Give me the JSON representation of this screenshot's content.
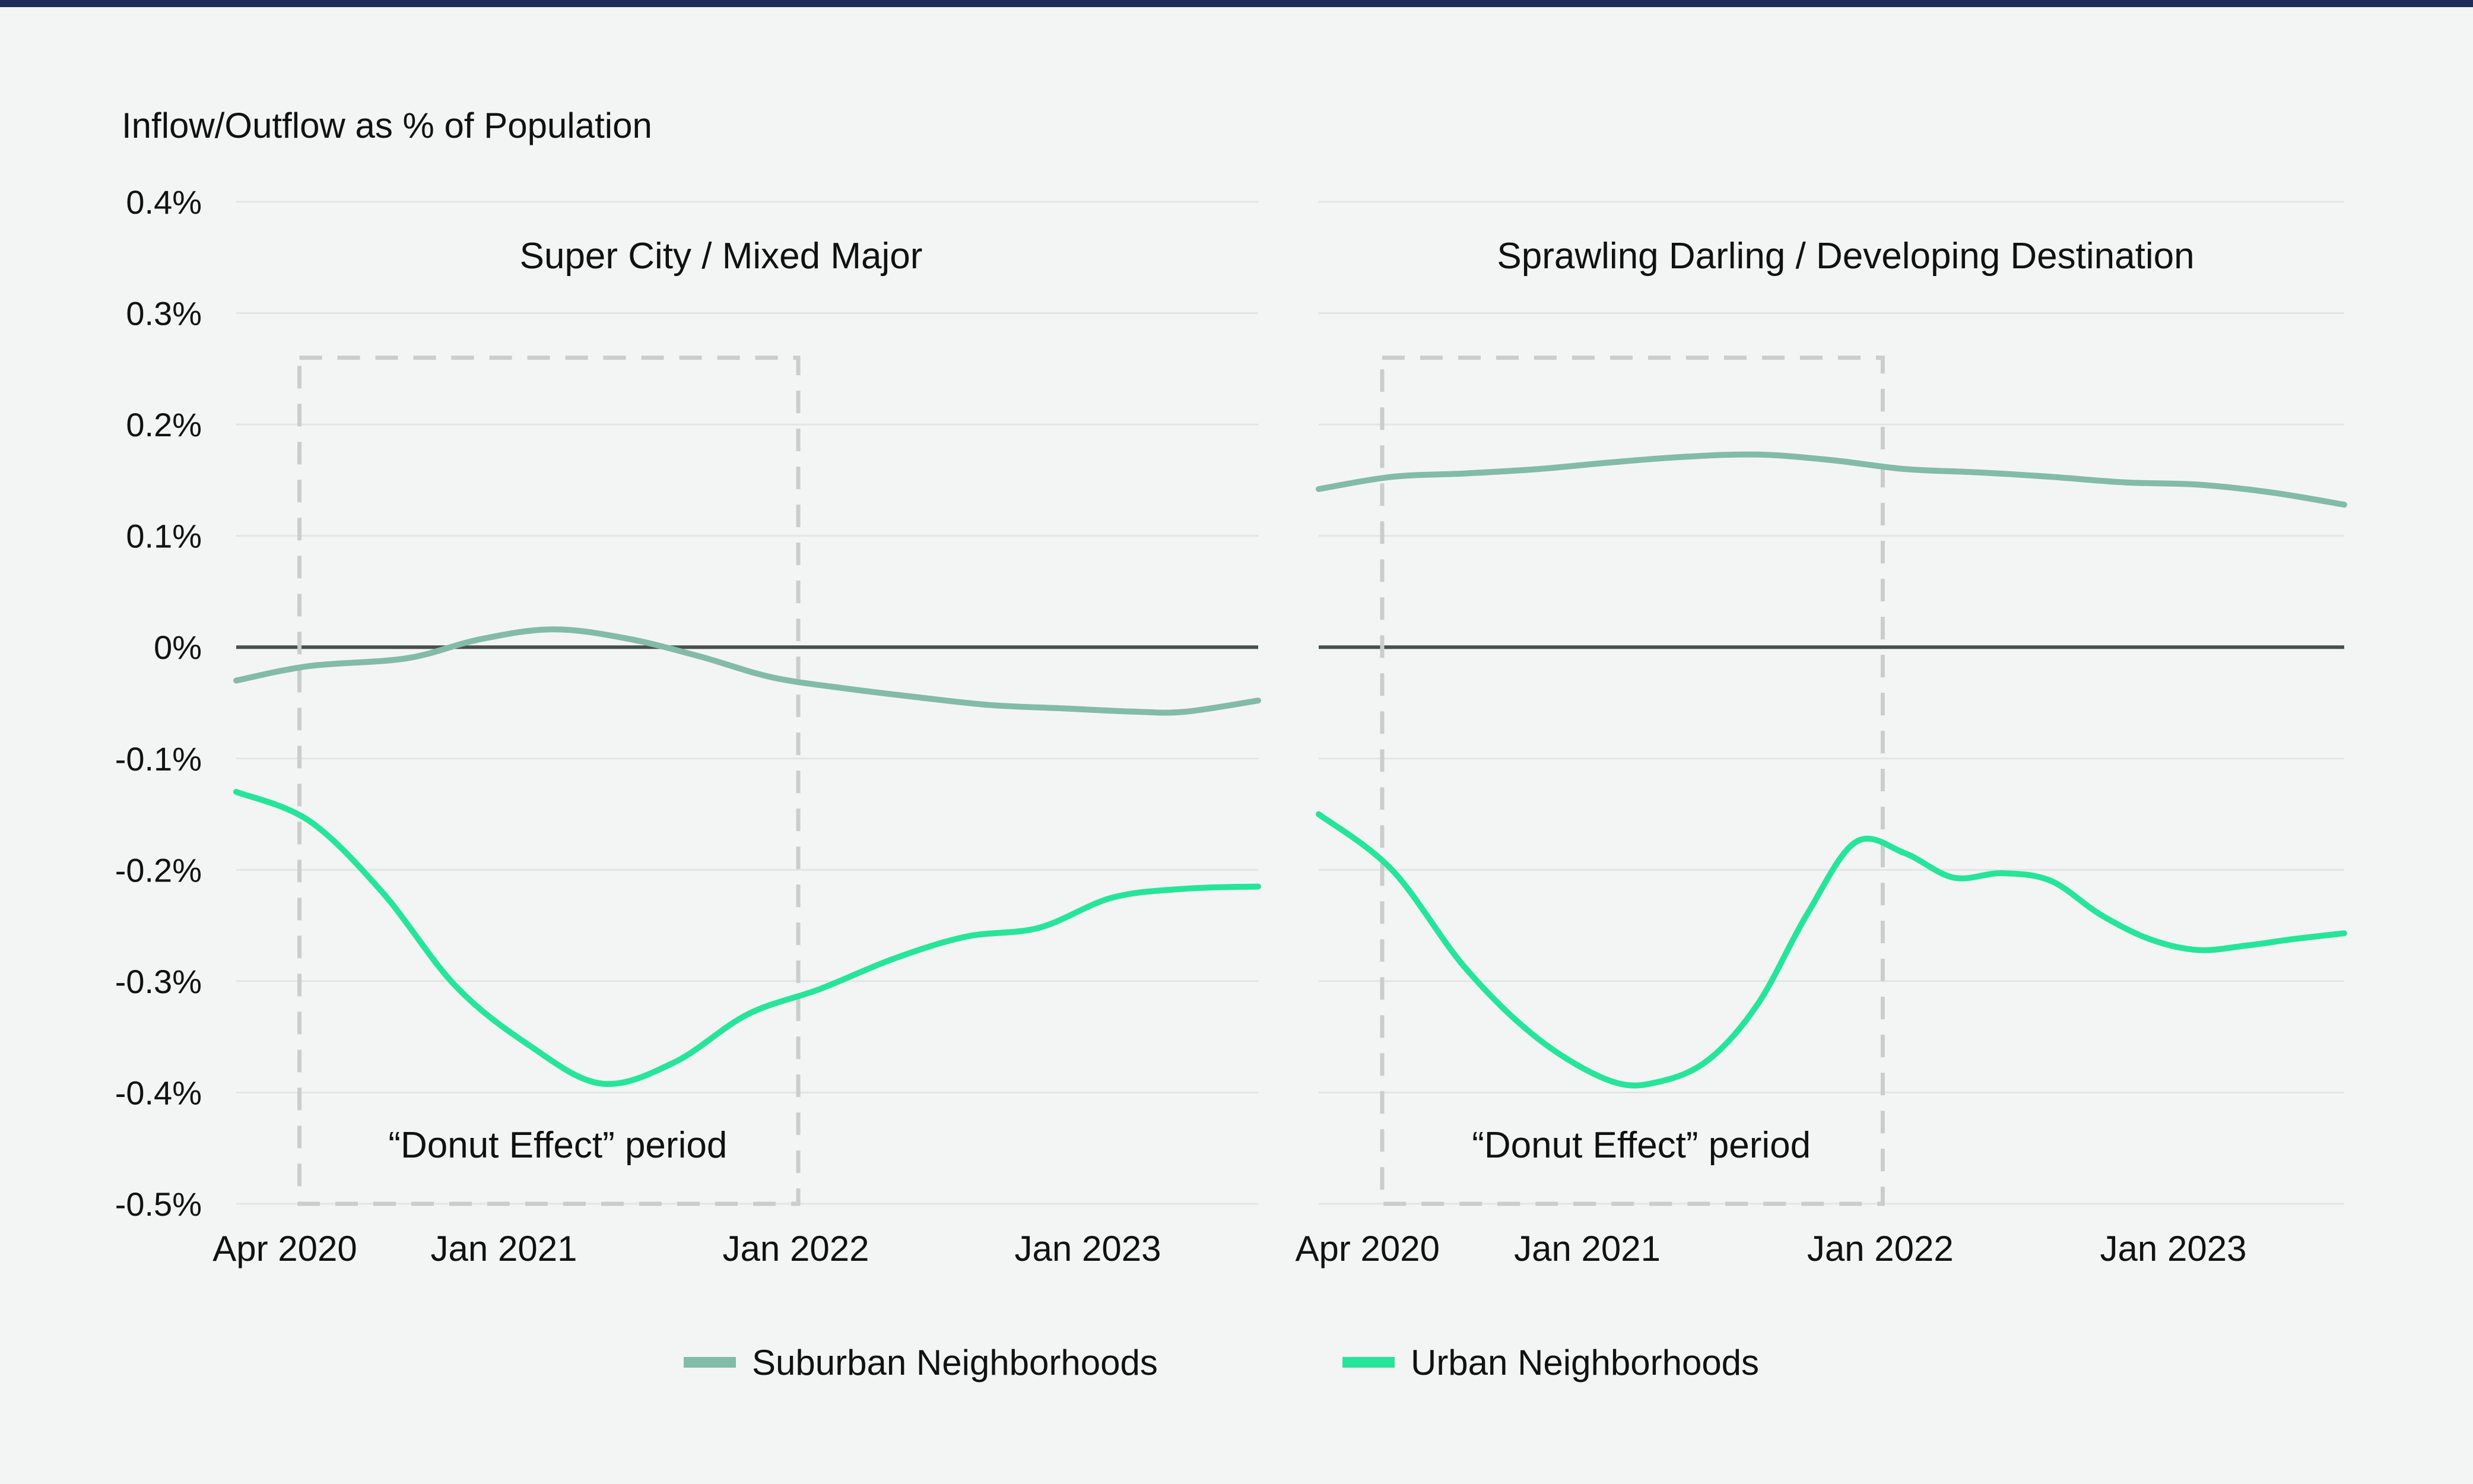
{
  "colors": {
    "background": "#f3f5f4",
    "top_bar": "#1c2d5a",
    "suburban": "#83bba9",
    "urban": "#26e59a",
    "zero_line": "#46504f",
    "grid": "#e1e5e3",
    "box": "#c9cdcb"
  },
  "chart_data": [
    {
      "type": "line",
      "title": "Super City / Mixed Major",
      "ylabel": "Inflow/Outflow as % of Population",
      "ylim": [
        -0.5,
        0.4
      ],
      "y_ticks": [
        0.4,
        0.3,
        0.2,
        0.1,
        0,
        -0.1,
        -0.2,
        -0.3,
        -0.4,
        -0.5
      ],
      "y_tick_labels": [
        "0.4%",
        "0.3%",
        "0.2%",
        "0.1%",
        "0%",
        "-0.1%",
        "-0.2%",
        "-0.3%",
        "-0.4%",
        "-0.5%"
      ],
      "x_unit": "months since Jan 2020",
      "xlim": [
        1,
        43
      ],
      "x_ticks": [
        3,
        12,
        24,
        36
      ],
      "x_tick_labels": [
        "Apr 2020",
        "Jan 2021",
        "Jan 2022",
        "Jan 2023"
      ],
      "annotation": {
        "text": "“Donut Effect” period",
        "x_range": [
          3.6,
          24.1
        ],
        "y_range": [
          -0.5,
          0.26
        ]
      },
      "series": [
        {
          "name": "Suburban Neighborhoods",
          "x": [
            1,
            4,
            8,
            11,
            14,
            17,
            20,
            23,
            26,
            29,
            32,
            35,
            38,
            40,
            43
          ],
          "y": [
            -0.03,
            -0.017,
            -0.01,
            0.007,
            0.016,
            0.008,
            -0.008,
            -0.027,
            -0.037,
            -0.045,
            -0.052,
            -0.055,
            -0.058,
            -0.058,
            -0.048
          ]
        },
        {
          "name": "Urban Neighborhoods",
          "x": [
            1,
            4,
            7,
            10,
            13,
            16,
            19,
            22,
            25,
            28,
            31,
            34,
            37,
            40,
            43
          ],
          "y": [
            -0.13,
            -0.156,
            -0.22,
            -0.304,
            -0.357,
            -0.392,
            -0.373,
            -0.33,
            -0.307,
            -0.28,
            -0.26,
            -0.252,
            -0.225,
            -0.217,
            -0.215
          ]
        }
      ]
    },
    {
      "type": "line",
      "title": "Sprawling Darling / Developing Destination",
      "ylim": [
        -0.5,
        0.4
      ],
      "x_unit": "months since Jan 2020",
      "xlim": [
        1,
        43
      ],
      "x_ticks": [
        3,
        12,
        24,
        36
      ],
      "x_tick_labels": [
        "Apr 2020",
        "Jan 2021",
        "Jan 2022",
        "Jan 2023"
      ],
      "annotation": {
        "text": "“Donut Effect” period",
        "x_range": [
          3.6,
          24.1
        ],
        "y_range": [
          -0.5,
          0.26
        ]
      },
      "series": [
        {
          "name": "Suburban Neighborhoods",
          "x": [
            1,
            4,
            7,
            10,
            13,
            16,
            19,
            22,
            25,
            28,
            31,
            34,
            37,
            40,
            43
          ],
          "y": [
            0.142,
            0.153,
            0.156,
            0.16,
            0.166,
            0.171,
            0.173,
            0.168,
            0.16,
            0.157,
            0.153,
            0.148,
            0.146,
            0.139,
            0.128
          ]
        },
        {
          "name": "Urban Neighborhoods",
          "x": [
            1,
            4,
            7,
            10,
            13,
            15,
            17,
            19,
            21,
            23,
            25,
            27,
            29,
            31,
            33,
            35,
            37,
            39,
            41,
            43
          ],
          "y": [
            -0.15,
            -0.2,
            -0.288,
            -0.352,
            -0.39,
            -0.39,
            -0.37,
            -0.32,
            -0.24,
            -0.175,
            -0.185,
            -0.207,
            -0.203,
            -0.21,
            -0.24,
            -0.262,
            -0.272,
            -0.268,
            -0.262,
            -0.257
          ]
        }
      ]
    }
  ],
  "legend": {
    "items": [
      {
        "label": "Suburban Neighborhoods",
        "color": "#83bba9"
      },
      {
        "label": "Urban Neighborhoods",
        "color": "#26e59a"
      }
    ]
  }
}
